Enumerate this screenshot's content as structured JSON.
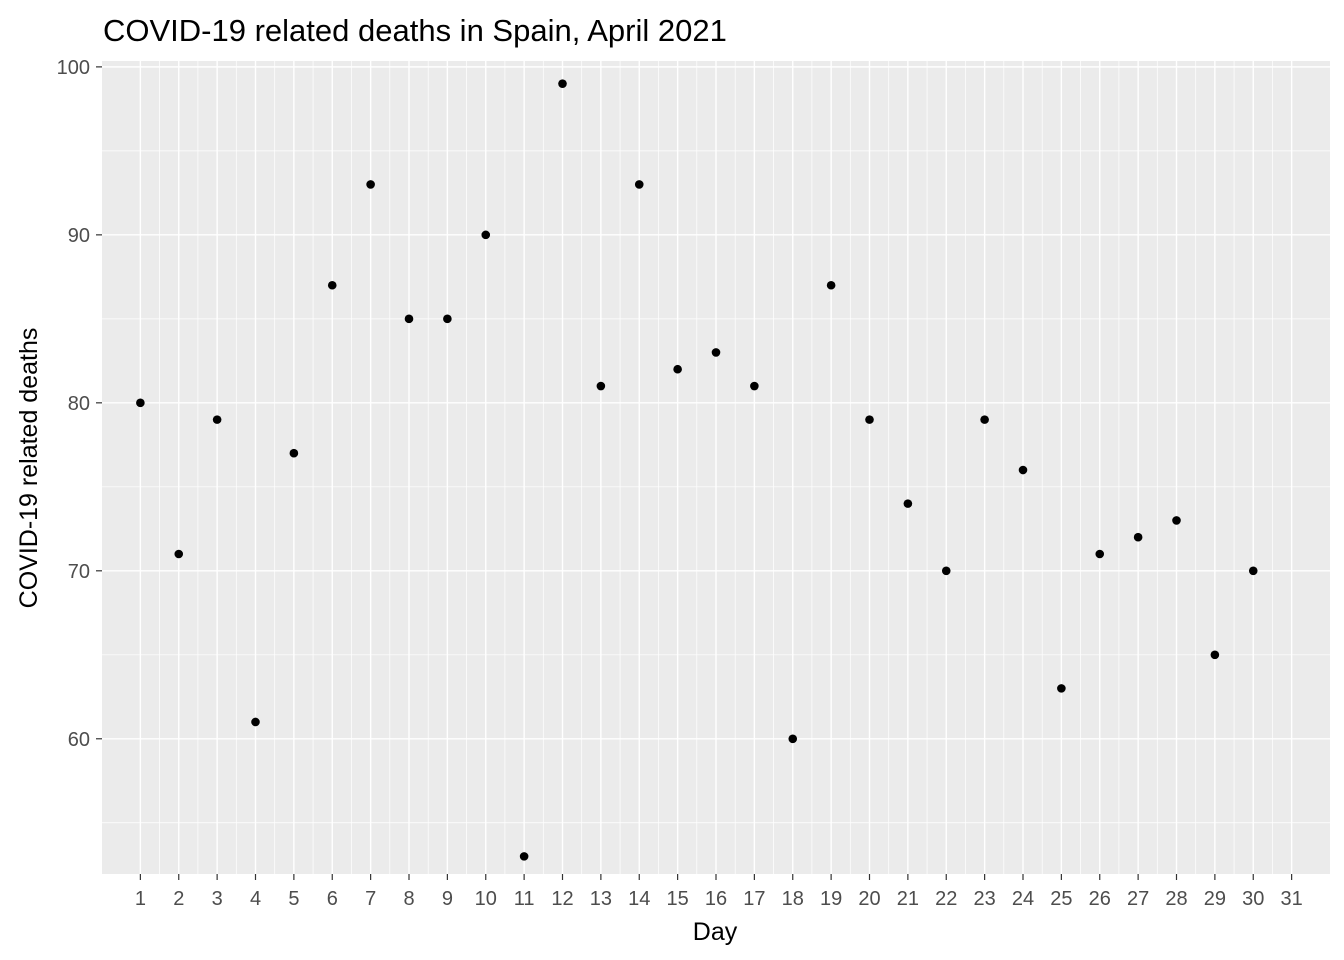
{
  "chart_data": {
    "type": "scatter",
    "title": "COVID-19 related deaths in Spain, April 2021",
    "xlabel": "Day",
    "ylabel": "COVID-19 related deaths",
    "x": [
      1,
      2,
      3,
      4,
      5,
      6,
      7,
      8,
      9,
      10,
      11,
      12,
      13,
      14,
      15,
      16,
      17,
      18,
      19,
      20,
      21,
      22,
      23,
      24,
      25,
      26,
      27,
      28,
      29,
      30
    ],
    "y": [
      80,
      71,
      79,
      61,
      77,
      87,
      93,
      85,
      85,
      90,
      53,
      99,
      81,
      93,
      82,
      83,
      81,
      60,
      87,
      79,
      74,
      70,
      79,
      76,
      63,
      71,
      72,
      73,
      65,
      70
    ],
    "x_ticks": [
      "1",
      "2",
      "3",
      "4",
      "5",
      "6",
      "7",
      "8",
      "9",
      "10",
      "11",
      "12",
      "13",
      "14",
      "15",
      "16",
      "17",
      "18",
      "19",
      "20",
      "21",
      "22",
      "23",
      "24",
      "25",
      "26",
      "27",
      "28",
      "29",
      "30",
      "31"
    ],
    "y_ticks": [
      "60",
      "70",
      "80",
      "90",
      "100"
    ],
    "xlim": [
      1,
      31
    ],
    "ylim": [
      51.95,
      100.35
    ],
    "grid": true,
    "panel_background": "#ebebeb",
    "grid_color": "#ffffff",
    "point_color": "#000000",
    "tick_color": "#333333",
    "tick_label_color": "#4d4d4d"
  }
}
